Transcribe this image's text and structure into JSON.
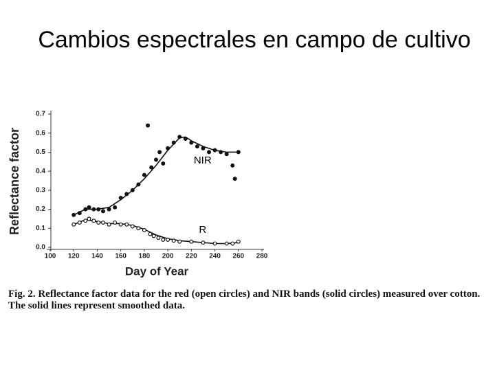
{
  "slide_title": "Cambios espectrales en campo de cultivo",
  "chart_data": {
    "type": "scatter",
    "x_label": "Day of Year",
    "y_label": "Reflectance factor",
    "xlim": [
      100,
      280
    ],
    "xticks": [
      100,
      120,
      140,
      160,
      180,
      200,
      220,
      240,
      260,
      280
    ],
    "ylim": [
      0,
      0.7
    ],
    "yticks": [
      {
        "value": 0,
        "label": "0.0"
      },
      0.1,
      0.2,
      0.3,
      0.4,
      0.5,
      0.6,
      0.7
    ],
    "caption": "Fig. 2. Reflectance factor data for the red (open circles) and NIR bands (solid circles) measured over cotton. The solid lines represent smoothed data.",
    "series": [
      {
        "name": "NIR",
        "color": "#111111",
        "marker": "solid",
        "x": [
          120,
          125,
          130,
          133,
          137,
          141,
          145,
          150,
          155,
          160,
          165,
          170,
          175,
          180,
          183,
          186,
          190,
          193,
          196,
          200,
          205,
          210,
          215,
          220,
          225,
          230,
          235,
          240,
          245,
          250,
          255,
          257,
          260
        ],
        "values": [
          0.17,
          0.18,
          0.2,
          0.21,
          0.2,
          0.2,
          0.19,
          0.2,
          0.21,
          0.26,
          0.28,
          0.3,
          0.33,
          0.38,
          0.64,
          0.42,
          0.46,
          0.5,
          0.44,
          0.52,
          0.55,
          0.58,
          0.57,
          0.55,
          0.53,
          0.52,
          0.5,
          0.51,
          0.5,
          0.49,
          0.43,
          0.36,
          0.5
        ],
        "fit_x": [
          120,
          130,
          140,
          150,
          160,
          170,
          180,
          190,
          200,
          210,
          215,
          220,
          230,
          240,
          250,
          260
        ],
        "fit_values": [
          0.17,
          0.2,
          0.2,
          0.21,
          0.25,
          0.3,
          0.36,
          0.43,
          0.51,
          0.575,
          0.58,
          0.56,
          0.53,
          0.51,
          0.5,
          0.5
        ]
      },
      {
        "name": "R",
        "color": "#111111",
        "marker": "open",
        "x": [
          120,
          125,
          130,
          133,
          137,
          141,
          145,
          150,
          155,
          160,
          165,
          170,
          175,
          180,
          185,
          188,
          192,
          196,
          200,
          205,
          210,
          220,
          230,
          240,
          250,
          255,
          260
        ],
        "values": [
          0.12,
          0.13,
          0.14,
          0.15,
          0.14,
          0.13,
          0.13,
          0.12,
          0.13,
          0.12,
          0.12,
          0.11,
          0.1,
          0.09,
          0.07,
          0.06,
          0.05,
          0.04,
          0.04,
          0.035,
          0.03,
          0.03,
          0.025,
          0.02,
          0.02,
          0.02,
          0.03
        ],
        "fit_x": [
          120,
          130,
          140,
          150,
          160,
          170,
          180,
          190,
          200,
          210,
          220,
          230,
          240,
          250,
          260
        ],
        "fit_values": [
          0.12,
          0.145,
          0.135,
          0.125,
          0.125,
          0.115,
          0.095,
          0.065,
          0.045,
          0.035,
          0.03,
          0.025,
          0.02,
          0.02,
          0.025
        ]
      }
    ]
  }
}
